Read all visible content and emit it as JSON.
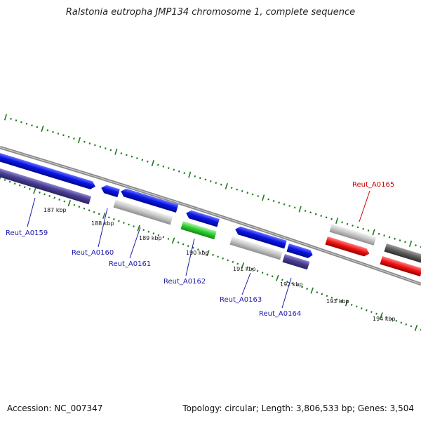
{
  "title": "Ralstonia eutropha JMP134 chromosome 1, complete sequence",
  "footer": {
    "accession": "Accession: NC_007347",
    "summary": "Topology: circular; Length: 3,806,533 bp; Genes: 3,504"
  },
  "colors": {
    "backbone": "#8a8a8a",
    "tick": "#1f7a1f",
    "blue": "#0a14e6",
    "slate": "#4a3f94",
    "grey": "#c4c4c4",
    "green": "#2ecc2e",
    "red": "#ee1111",
    "darkgrey": "#5a5a5a",
    "label_blue": "#1a1aa8",
    "label_red": "#cc0000"
  },
  "kbp_labels": [
    "187 kbp",
    "188 kbp",
    "189 kbp",
    "190 kbp",
    "191 kbp",
    "192 kbp",
    "193 kbp",
    "194 kbp"
  ],
  "gene_labels": [
    "Reut_A0159",
    "Reut_A0160",
    "Reut_A0161",
    "Reut_A0162",
    "Reut_A0163",
    "Reut_A0164",
    "Reut_A0165"
  ]
}
